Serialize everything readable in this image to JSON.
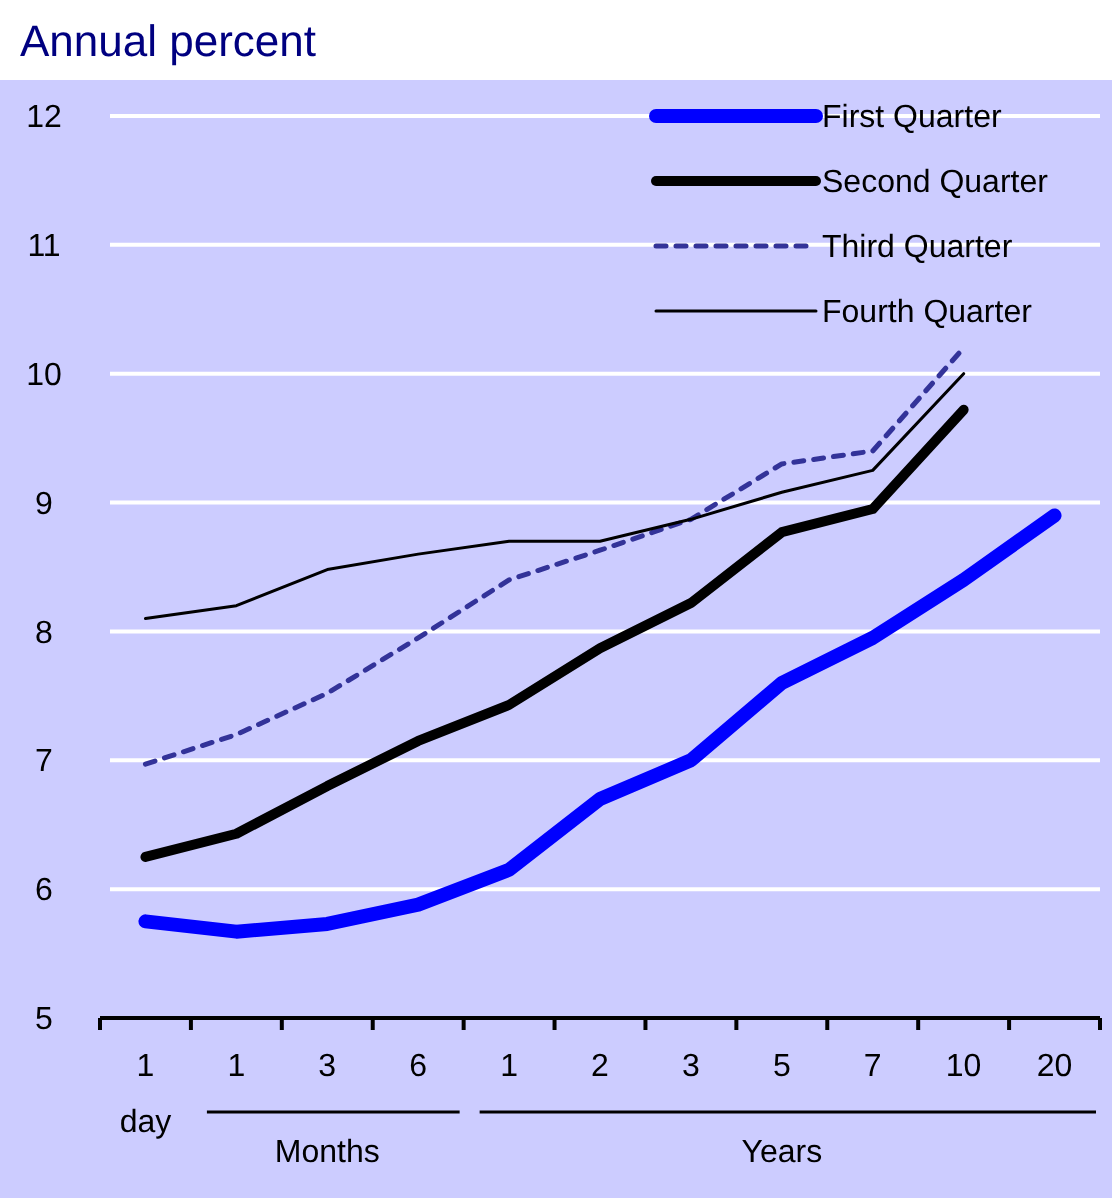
{
  "chart_data": {
    "type": "line",
    "ylabel": "Annual percent",
    "categories": [
      "1",
      "1",
      "3",
      "6",
      "1",
      "2",
      "3",
      "5",
      "7",
      "10",
      "20"
    ],
    "annotations": [
      "day",
      "Months",
      "Years"
    ],
    "series": [
      {
        "name": "First Quarter",
        "color": "#0000ff",
        "values": [
          5.75,
          5.67,
          5.73,
          5.88,
          6.15,
          6.7,
          7.0,
          7.6,
          7.95,
          8.4,
          8.9
        ]
      },
      {
        "name": "Second Quarter",
        "color": "#000000",
        "values": [
          6.25,
          6.43,
          6.8,
          7.15,
          7.43,
          7.87,
          8.22,
          8.77,
          8.95,
          9.72,
          null
        ]
      },
      {
        "name": "Third Quarter",
        "color": "#333399",
        "line_style": "dashed",
        "values": [
          6.97,
          7.2,
          7.52,
          7.95,
          8.4,
          8.63,
          8.87,
          9.3,
          9.4,
          10.2,
          null
        ]
      },
      {
        "name": "Fourth Quarter",
        "color": "#000000",
        "values": [
          8.1,
          8.2,
          8.48,
          8.6,
          8.7,
          8.7,
          8.87,
          9.08,
          9.25,
          10.0,
          null
        ]
      }
    ],
    "ylim": [
      5,
      12
    ],
    "yticks": [
      5,
      6,
      7,
      8,
      9,
      10,
      11,
      12
    ],
    "grid": "y",
    "legend": "top right",
    "line_style": "solid",
    "marker": "none"
  }
}
